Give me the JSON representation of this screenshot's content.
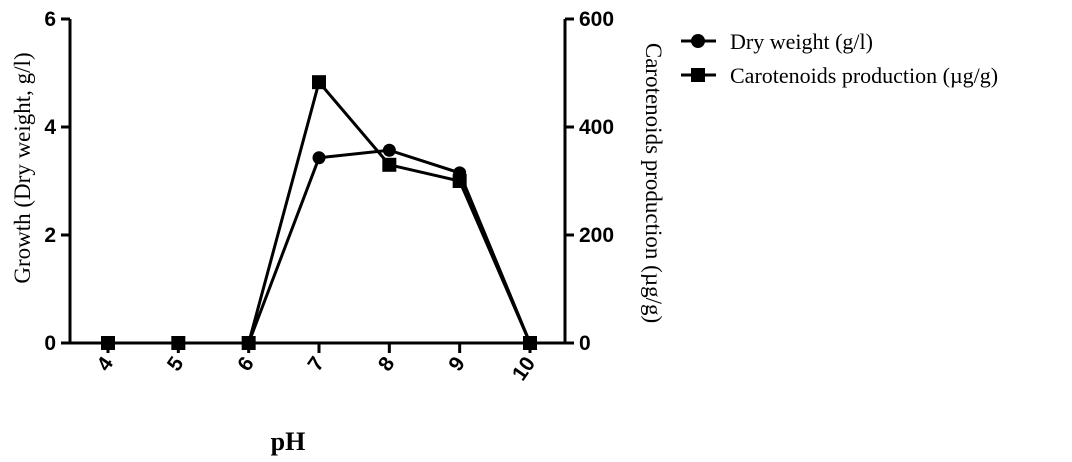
{
  "chart_data": {
    "type": "line",
    "title": "",
    "xlabel": "pH",
    "ylabel_left": "Growth (Dry weight, g/l)",
    "ylabel_right": "Carotenoids production (µg/g)",
    "x": [
      "4",
      "5",
      "6",
      "7",
      "8",
      "9",
      "10"
    ],
    "ylim_left": [
      0,
      6
    ],
    "ylim_right": [
      0,
      600
    ],
    "yticks_left": [
      0,
      2,
      4,
      6
    ],
    "yticks_right": [
      0,
      200,
      400,
      600
    ],
    "grid": false,
    "legend_position": "top-right",
    "series": [
      {
        "name": "Dry weight (g/l)",
        "axis": "left",
        "marker": "circle",
        "values": [
          0,
          0,
          0,
          3.43,
          3.57,
          3.15,
          0
        ]
      },
      {
        "name": "Carotenoids production (µg/g)",
        "axis": "right",
        "marker": "square",
        "values": [
          0,
          0,
          0,
          483,
          330,
          300,
          0
        ]
      }
    ],
    "colors": {
      "line": "#000000"
    }
  }
}
